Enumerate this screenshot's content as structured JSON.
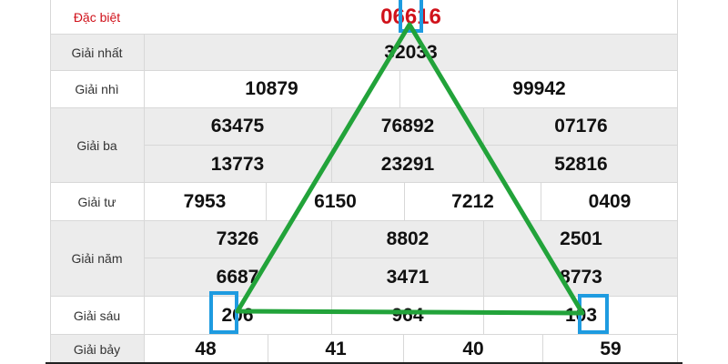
{
  "prizes": {
    "special": {
      "label": "Đặc biệt",
      "values": [
        "06616"
      ]
    },
    "first": {
      "label": "Giải nhất",
      "values": [
        "32033"
      ]
    },
    "second": {
      "label": "Giải nhì",
      "values": [
        "10879",
        "99942"
      ]
    },
    "third": {
      "label": "Giải ba",
      "values": [
        "63475",
        "76892",
        "07176",
        "13773",
        "23291",
        "52816"
      ]
    },
    "fourth": {
      "label": "Giải tư",
      "values": [
        "7953",
        "6150",
        "7212",
        "0409"
      ]
    },
    "fifth": {
      "label": "Giải năm",
      "values": [
        "7326",
        "8802",
        "2501",
        "6687",
        "3471",
        "8773"
      ]
    },
    "sixth": {
      "label": "Giải sáu",
      "values": [
        "206",
        "964",
        "103"
      ]
    },
    "seventh": {
      "label": "Giải bảy",
      "values": [
        "48",
        "41",
        "40",
        "59"
      ]
    }
  },
  "colors": {
    "special": "#d0121b",
    "triangle": "#22a33a",
    "highlight": "#1e9be0"
  }
}
